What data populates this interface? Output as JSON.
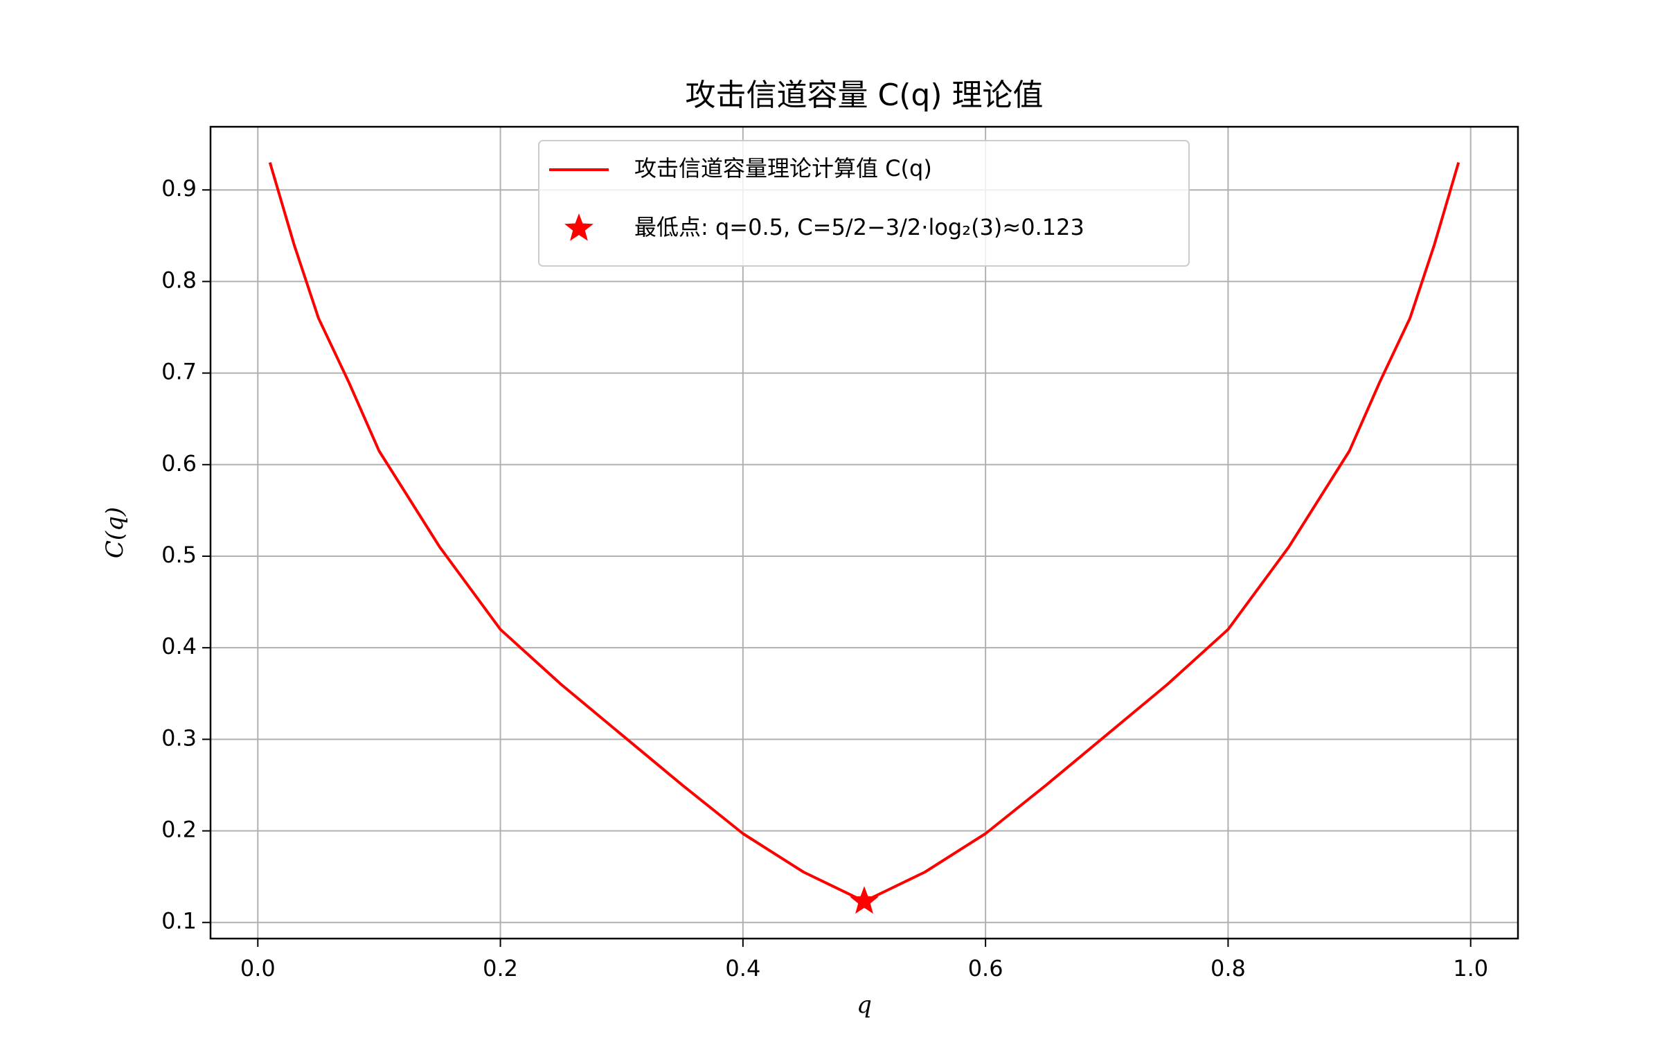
{
  "chart_data": {
    "type": "line",
    "title": "攻击信道容量 C(q) 理论值",
    "xlabel": "q",
    "ylabel": "C(q)",
    "xlim": [
      -0.039,
      1.039
    ],
    "ylim": [
      0.0824,
      0.969
    ],
    "xticks": [
      {
        "value": 0,
        "label": "0.0"
      },
      0.2,
      0.4,
      0.6,
      0.8,
      {
        "value": 1,
        "label": "1.0"
      }
    ],
    "yticks": [
      0.1,
      0.2,
      0.3,
      0.4,
      0.5,
      0.6,
      0.7,
      0.8,
      0.9
    ],
    "grid": true,
    "legend": "upper center",
    "series": [
      {
        "name": "攻击信道容量理论计算值 C(q)",
        "color": "#ff0000",
        "marker": "none",
        "x": [
          0.01,
          0.03,
          0.05,
          0.075,
          0.1,
          0.15,
          0.2,
          0.25,
          0.3,
          0.35,
          0.4,
          0.45,
          0.5,
          0.55,
          0.6,
          0.65,
          0.7,
          0.75,
          0.8,
          0.85,
          0.9,
          0.925,
          0.95,
          0.97,
          0.99
        ],
        "values": [
          0.93,
          0.84,
          0.76,
          0.69,
          0.615,
          0.51,
          0.42,
          0.36,
          0.305,
          0.25,
          0.197,
          0.155,
          0.123,
          0.155,
          0.197,
          0.25,
          0.305,
          0.36,
          0.42,
          0.51,
          0.615,
          0.69,
          0.76,
          0.84,
          0.93
        ]
      },
      {
        "name": "最低点: q=0.5, C=5/2−3/2·log₂(3)≈0.123",
        "color": "#ff0000",
        "marker": "star",
        "x": [
          0.5
        ],
        "values": [
          0.123
        ]
      }
    ]
  }
}
